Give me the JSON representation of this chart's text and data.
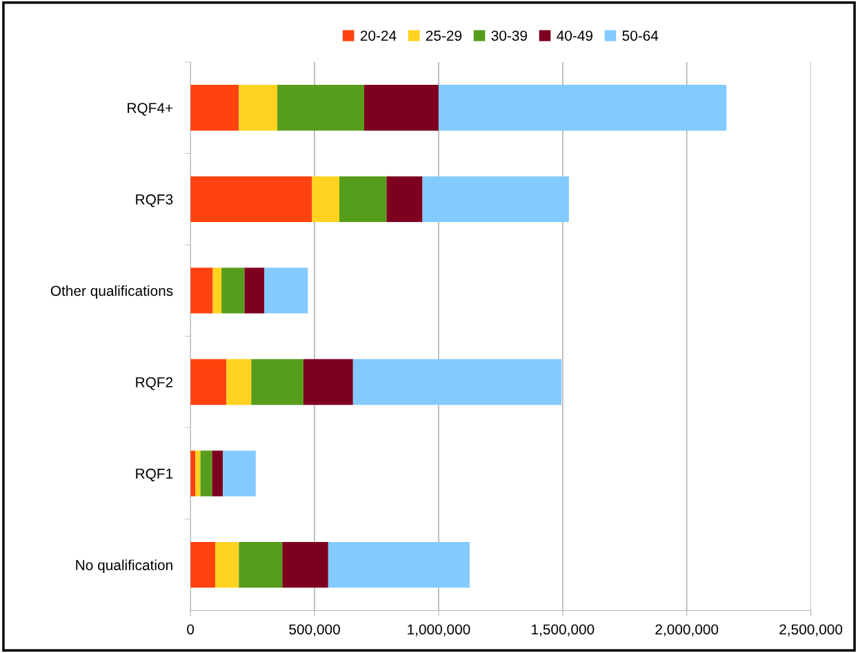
{
  "chart_data": {
    "type": "bar",
    "orientation": "horizontal",
    "stacked": true,
    "categories": [
      "RQF4+",
      "RQF3",
      "Other qualifications",
      "RQF2",
      "RQF1",
      "No qualification"
    ],
    "series": [
      {
        "name": "20-24",
        "color": "#ff420e",
        "values": [
          195000,
          490000,
          90000,
          145000,
          20000,
          100000
        ]
      },
      {
        "name": "25-29",
        "color": "#ffd320",
        "values": [
          155000,
          110000,
          35000,
          100000,
          20000,
          95000
        ]
      },
      {
        "name": "30-39",
        "color": "#579d1c",
        "values": [
          350000,
          190000,
          93000,
          210000,
          47000,
          175000
        ]
      },
      {
        "name": "40-49",
        "color": "#7e0021",
        "values": [
          300000,
          145000,
          80000,
          200000,
          44000,
          185000
        ]
      },
      {
        "name": "50-64",
        "color": "#83caff",
        "values": [
          1160000,
          590000,
          175000,
          840000,
          132000,
          570000
        ]
      }
    ],
    "xlim": [
      0,
      2500000
    ],
    "xticks": [
      {
        "value": 0,
        "label": "0"
      },
      {
        "value": 500000,
        "label": "500,000"
      },
      {
        "value": 1000000,
        "label": "1,000,000"
      },
      {
        "value": 1500000,
        "label": "1,500,000"
      },
      {
        "value": 2000000,
        "label": "2,000,000"
      },
      {
        "value": 2500000,
        "label": "2,500,000"
      }
    ],
    "grid": "x",
    "legend": "top"
  }
}
